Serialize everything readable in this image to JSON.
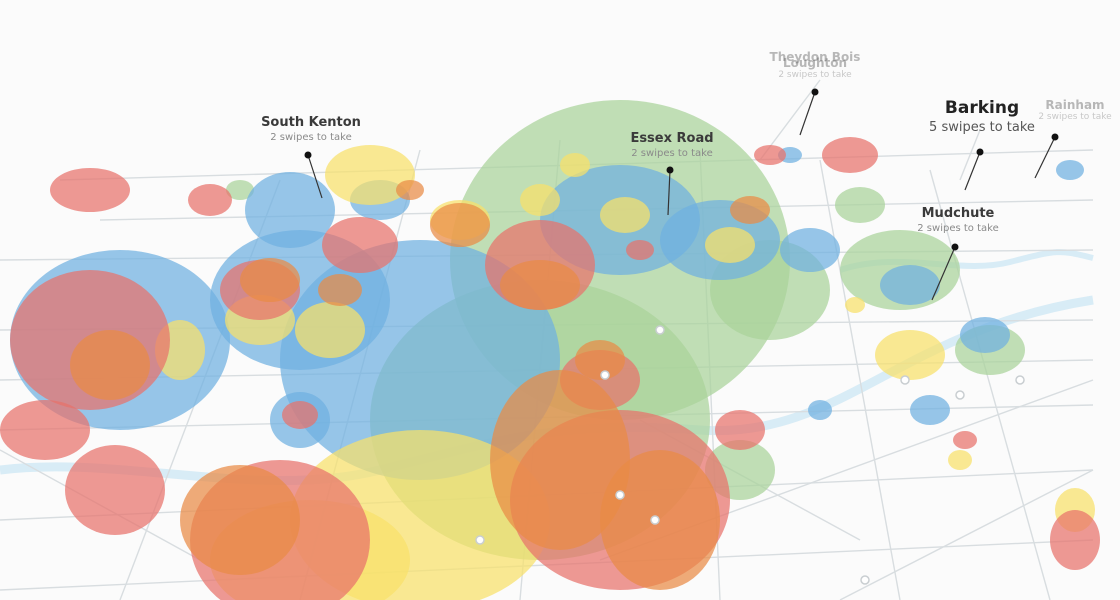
{
  "colors": {
    "red": "#e8726b",
    "blue": "#6fb0e0",
    "yellow": "#f8e16a",
    "green": "#a9d29a",
    "orange": "#e98a45",
    "line": "#d8dde0",
    "river": "#cfe8f5"
  },
  "labels": {
    "south_kenton": {
      "name": "South Kenton",
      "sub": "2 swipes to take"
    },
    "essex_road": {
      "name": "Essex Road",
      "sub": "2 swipes to take"
    },
    "barking": {
      "name": "Barking",
      "sub": "5 swipes to take"
    },
    "mudchute": {
      "name": "Mudchute",
      "sub": "2 swipes to take"
    },
    "rainham": {
      "name": "Rainham",
      "sub": "2 swipes to take"
    },
    "loughton": {
      "name": "Loughton",
      "sub": "2 swipes to take"
    },
    "theydon_bois": {
      "name": "Theydon Bois",
      "sub": "2 swipes to take"
    }
  }
}
